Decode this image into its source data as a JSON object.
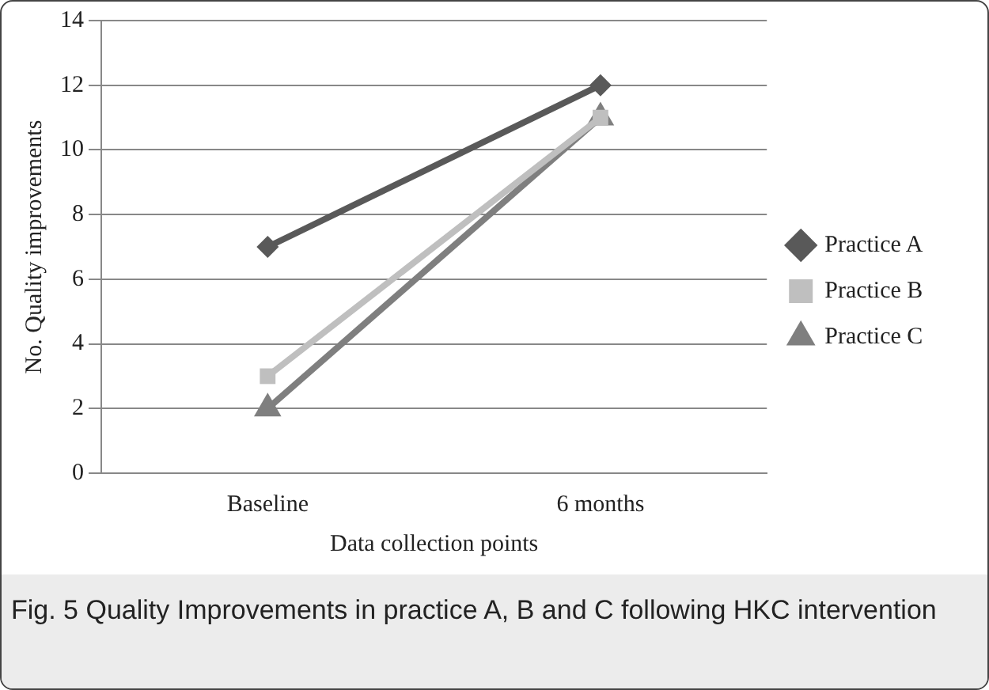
{
  "chart_data": {
    "type": "line",
    "xlabel": "Data collection points",
    "ylabel": "No. Quality improvements",
    "categories": [
      "Baseline",
      "6 months"
    ],
    "ylim": [
      0,
      14
    ],
    "yticks": [
      0,
      2,
      4,
      6,
      8,
      10,
      12,
      14
    ],
    "grid": "y",
    "legend": "right",
    "series": [
      {
        "name": "Practice A",
        "color": "#595959",
        "marker": "diamond",
        "values": [
          7,
          12
        ]
      },
      {
        "name": "Practice B",
        "color": "#bfbfbf",
        "marker": "square",
        "values": [
          3,
          11
        ]
      },
      {
        "name": "Practice C",
        "color": "#7f7f7f",
        "marker": "triangle",
        "values": [
          2,
          11
        ]
      }
    ],
    "annotations": [
      "Fig. 5 Quality Improvements in practice A, B and C following HKC intervention"
    ]
  }
}
